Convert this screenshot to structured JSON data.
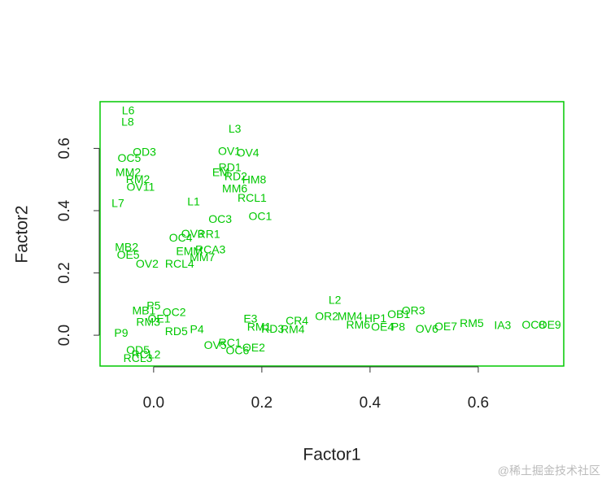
{
  "chart_data": {
    "type": "scatter",
    "color": "#00c800",
    "xlabel": "Factor1",
    "ylabel": "Factor2",
    "xlim": [
      -0.099,
      0.758
    ],
    "ylim": [
      -0.099,
      0.75
    ],
    "xticks": [
      {
        "value": 0,
        "label": "0.0"
      },
      0.2,
      0.4,
      0.6
    ],
    "yticks": [
      {
        "value": 0,
        "label": "0.0"
      },
      0.2,
      0.4,
      0.6
    ],
    "labels": [
      "L6",
      "L8",
      "L3",
      "OD3",
      "OC5",
      "OV1",
      "OV4",
      "MM2",
      "RM2",
      "OV11",
      "RD1",
      "EM",
      "HM8",
      "RD2",
      "MM6",
      "L7",
      "L1",
      "RCL1",
      "OC3",
      "OC1",
      "OV3",
      "RR1",
      "OC4",
      "RCA3",
      "EMM",
      "MM7",
      "MB2",
      "OE5",
      "OV2",
      "RCL4",
      "L2",
      "OR2",
      "MM4",
      "P5",
      "MB1",
      "OC2",
      "RM3",
      "OE1",
      "RD5",
      "P4",
      "P9",
      "E3",
      "RM1",
      "RD3",
      "CR4",
      "RM4",
      "OV5",
      "RC1",
      "OC6",
      "OE2",
      "OD5",
      "RCL2",
      "RCL3",
      "RM6",
      "HP1",
      "OE4",
      "P8",
      "OB1",
      "OR3",
      "OV6",
      "OE7",
      "RM5",
      "IA3",
      "OC8",
      "OE9"
    ],
    "x": [
      -0.047,
      -0.048,
      0.15,
      -0.017,
      -0.045,
      0.14,
      0.174,
      -0.047,
      -0.029,
      -0.024,
      0.141,
      0.124,
      0.186,
      0.152,
      0.15,
      -0.066,
      0.074,
      0.182,
      0.123,
      0.197,
      0.072,
      0.102,
      0.05,
      0.105,
      0.066,
      0.09,
      -0.05,
      -0.047,
      -0.012,
      0.048,
      0.335,
      0.32,
      0.363,
      0,
      -0.018,
      0.038,
      -0.01,
      0.01,
      0.042,
      0.08,
      -0.06,
      0.179,
      0.195,
      0.22,
      0.265,
      0.257,
      0.114,
      0.141,
      0.155,
      0.185,
      -0.029,
      -0.014,
      -0.029,
      0.378,
      0.41,
      0.423,
      0.452,
      0.453,
      0.48,
      0.505,
      0.54,
      0.588,
      0.645,
      0.702,
      0.732
    ],
    "values": [
      0.719,
      0.682,
      0.661,
      0.586,
      0.567,
      0.588,
      0.583,
      0.52,
      0.499,
      0.473,
      0.536,
      0.52,
      0.497,
      0.508,
      0.468,
      0.421,
      0.426,
      0.439,
      0.371,
      0.379,
      0.324,
      0.322,
      0.311,
      0.272,
      0.267,
      0.248,
      0.28,
      0.256,
      0.227,
      0.227,
      0.11,
      0.058,
      0.058,
      0.092,
      0.076,
      0.071,
      0.04,
      0.05,
      0.01,
      0.016,
      0.005,
      0.05,
      0.024,
      0.018,
      0.044,
      0.016,
      -0.034,
      -0.026,
      -0.052,
      -0.042,
      -0.05,
      -0.065,
      -0.076,
      0.031,
      0.052,
      0.024,
      0.024,
      0.065,
      0.076,
      0.018,
      0.026,
      0.036,
      0.029,
      0.031,
      0.031
    ]
  },
  "watermark": "@稀土掘金技术社区"
}
